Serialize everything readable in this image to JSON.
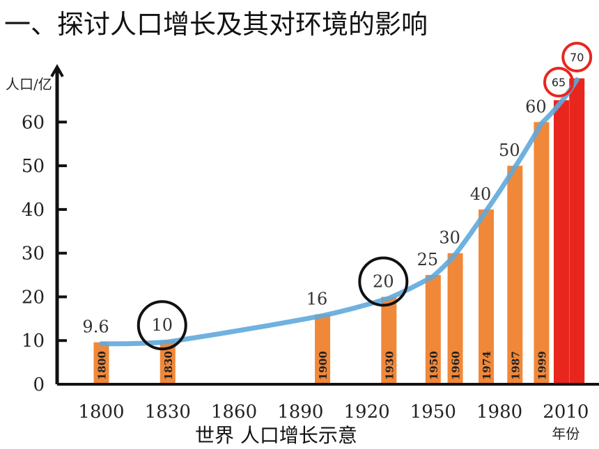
{
  "title": "一、探讨人口增长及其对环境的影响",
  "chart_data": {
    "type": "bar",
    "title": "",
    "caption": "世界  人口增长示意",
    "ylabel": "人口/亿",
    "xlabel": "年份",
    "ylim": [
      0,
      72
    ],
    "xlim": [
      1780,
      2025
    ],
    "yticks": [
      0,
      10,
      20,
      30,
      40,
      50,
      60
    ],
    "xticks": [
      1800,
      1830,
      1860,
      1890,
      1920,
      1950,
      1980,
      2010
    ],
    "bars": [
      {
        "year": 1800,
        "value": 9.6,
        "value_label": "9.6",
        "year_label": "1800",
        "color": "#F0883A"
      },
      {
        "year": 1830,
        "value": 10,
        "value_label": "10",
        "year_label": "1830",
        "color": "#F0883A"
      },
      {
        "year": 1900,
        "value": 16,
        "value_label": "16",
        "year_label": "1900",
        "color": "#F0883A"
      },
      {
        "year": 1930,
        "value": 20,
        "value_label": "20",
        "year_label": "1930",
        "color": "#F0883A"
      },
      {
        "year": 1950,
        "value": 25,
        "value_label": "25",
        "year_label": "1950",
        "color": "#F0883A"
      },
      {
        "year": 1960,
        "value": 30,
        "value_label": "30",
        "year_label": "1960",
        "color": "#F0883A"
      },
      {
        "year": 1974,
        "value": 40,
        "value_label": "40",
        "year_label": "1974",
        "color": "#F0883A"
      },
      {
        "year": 1987,
        "value": 50,
        "value_label": "50",
        "year_label": "1987",
        "color": "#F0883A"
      },
      {
        "year": 1999,
        "value": 60,
        "value_label": "60",
        "year_label": "1999",
        "color": "#F0883A"
      },
      {
        "year": 2008,
        "value": 65,
        "value_label": "65",
        "year_label": "",
        "color": "#E8261E"
      },
      {
        "year": 2015,
        "value": 70,
        "value_label": "70",
        "year_label": "",
        "color": "#E8261E"
      }
    ],
    "trend_line_color": "#5FA8DC",
    "circled_values": [
      10,
      20,
      65,
      70
    ]
  }
}
